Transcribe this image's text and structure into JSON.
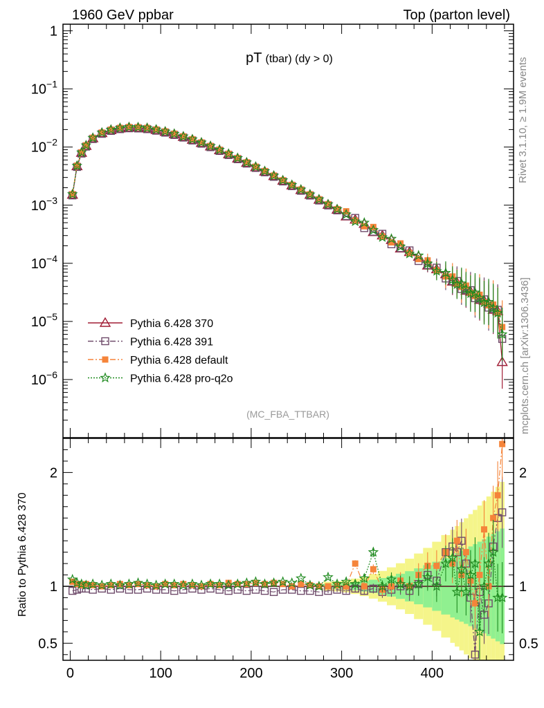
{
  "header": {
    "left": "1960 GeV ppbar",
    "right": "Top (parton level)"
  },
  "side_labels": {
    "rivet": "Rivet 3.1.10, ≥ 1.9M events",
    "mcplots": "mcplots.cern.ch [arXiv:1306.3436]"
  },
  "chart_data": [
    {
      "type": "line",
      "panel": "main",
      "title": "pT",
      "title_sub": "(tbar) (dy > 0)",
      "watermark": "(MC_FBA_TTBAR)",
      "yscale": "log",
      "xlim": [
        -8,
        490
      ],
      "ylim": [
        1e-07,
        1.3
      ],
      "ytick_labels": [
        {
          "value": 1,
          "label": "1"
        },
        {
          "value": 0.1,
          "base": "10",
          "exp": "−1"
        },
        {
          "value": 0.01,
          "base": "10",
          "exp": "−2"
        },
        {
          "value": 0.001,
          "base": "10",
          "exp": "−3"
        },
        {
          "value": 0.0001,
          "base": "10",
          "exp": "−4"
        },
        {
          "value": 1e-05,
          "base": "10",
          "exp": "−5"
        },
        {
          "value": 1e-06,
          "base": "10",
          "exp": "−6"
        }
      ],
      "knots": {
        "x": [
          2.5,
          7.5,
          12.5,
          17.5,
          25,
          35,
          45,
          55,
          65,
          72.5,
          85,
          100,
          120,
          140,
          160,
          180,
          200,
          220,
          240,
          260,
          280,
          300,
          320,
          340,
          360,
          380,
          400,
          420,
          440,
          460,
          470,
          477.5
        ],
        "log10y": [
          -2.82,
          -2.33,
          -2.1,
          -1.98,
          -1.85,
          -1.76,
          -1.71,
          -1.68,
          -1.665,
          -1.665,
          -1.68,
          -1.72,
          -1.8,
          -1.9,
          -2.02,
          -2.16,
          -2.31,
          -2.46,
          -2.62,
          -2.78,
          -2.95,
          -3.12,
          -3.3,
          -3.48,
          -3.67,
          -3.86,
          -4.06,
          -4.26,
          -4.47,
          -4.68,
          -4.8,
          -4.9
        ]
      },
      "series": [
        {
          "name": "Pythia 6.428 370",
          "color": "#a01c34",
          "marker": "triangle",
          "dash": "solid",
          "dy": 0.0,
          "noise": 0.03,
          "last_y": 2e-06
        },
        {
          "name": "Pythia 6.428 391",
          "color": "#6e4a6a",
          "marker": "square-open",
          "dash": "dashdot",
          "dy": -0.012,
          "noise": 0.05,
          "last_y": 5e-06
        },
        {
          "name": "Pythia 6.428 default",
          "color": "#f5843a",
          "marker": "square-filled",
          "dash": "dashdot",
          "dy": 0.01,
          "noise": 0.05,
          "last_y": 8e-06
        },
        {
          "name": "Pythia 6.428 pro-q2o",
          "color": "#1f8a1f",
          "marker": "star",
          "dash": "dotted",
          "dy": 0.008,
          "noise": 0.04,
          "last_y": 6e-06
        }
      ]
    },
    {
      "type": "line",
      "panel": "ratio",
      "ylabel": "Ratio to Pythia 6.428 370",
      "xlim": [
        -8,
        490
      ],
      "ylim": [
        0.35,
        2.3
      ],
      "yticks": [
        0.5,
        1,
        2
      ],
      "ytick_labels": [
        "0.5",
        "1",
        "2"
      ],
      "xticks": [
        0,
        100,
        200,
        300,
        400
      ],
      "xtick_labels": [
        "0",
        "100",
        "200",
        "300",
        "400"
      ],
      "band_colors": {
        "outer": "#f5f58a",
        "inner": "#90f090"
      },
      "ratios": {
        "Pythia 6.428 391": {
          "x": [
            2.5,
            7.5,
            12.5,
            17.5,
            25,
            35,
            45,
            55,
            65,
            75,
            85,
            95,
            105,
            115,
            125,
            135,
            145,
            155,
            165,
            175,
            185,
            195,
            205,
            215,
            225,
            235,
            245,
            255,
            265,
            275,
            285,
            295,
            305,
            315,
            325,
            335,
            345,
            355,
            365,
            375,
            385,
            395,
            405,
            415,
            422.5,
            427.5,
            432.5,
            437.5,
            442.5,
            447.5,
            452.5,
            457.5,
            462.5,
            467.5,
            472.5,
            477.5
          ],
          "y": [
            0.96,
            0.97,
            0.98,
            0.98,
            0.97,
            0.98,
            0.97,
            0.98,
            0.97,
            0.97,
            0.98,
            0.97,
            0.97,
            0.96,
            0.97,
            0.98,
            0.97,
            0.98,
            0.97,
            0.96,
            0.97,
            0.96,
            0.97,
            0.96,
            0.95,
            0.97,
            0.97,
            0.96,
            0.96,
            0.95,
            0.96,
            0.97,
            0.96,
            0.98,
            0.96,
            0.98,
            0.95,
            0.97,
            1.0,
            0.96,
            1.02,
            1.1,
            1.05,
            1.3,
            1.35,
            1.3,
            1.4,
            1.2,
            0.9,
            0.4,
            0.95,
            0.75,
            0.85,
            1.35,
            1.6,
            1.65
          ]
        },
        "Pythia 6.428 default": {
          "x": [
            2.5,
            7.5,
            12.5,
            17.5,
            25,
            35,
            45,
            55,
            65,
            75,
            85,
            95,
            105,
            115,
            125,
            135,
            145,
            155,
            165,
            175,
            185,
            195,
            205,
            215,
            225,
            235,
            245,
            255,
            265,
            275,
            285,
            295,
            305,
            315,
            325,
            335,
            345,
            355,
            365,
            375,
            385,
            395,
            405,
            415,
            422.5,
            427.5,
            432.5,
            437.5,
            442.5,
            447.5,
            452.5,
            457.5,
            462.5,
            467.5,
            472.5,
            477.5
          ],
          "y": [
            1.04,
            1.02,
            1.01,
            1.02,
            1.01,
            1.0,
            1.01,
            1.02,
            1.01,
            1.02,
            1.01,
            1.0,
            1.02,
            1.01,
            1.02,
            1.01,
            1.0,
            1.02,
            1.01,
            1.03,
            1.02,
            1.02,
            1.03,
            1.02,
            1.03,
            1.02,
            1.0,
            1.02,
            1.01,
            1.0,
            1.0,
            1.01,
            1.0,
            1.2,
            1.0,
            1.15,
            0.97,
            1.0,
            1.05,
            1.0,
            1.1,
            1.18,
            1.18,
            1.3,
            1.2,
            1.4,
            1.1,
            1.3,
            1.05,
            0.85,
            1.1,
            1.5,
            1.0,
            1.6,
            1.8,
            2.25
          ]
        },
        "Pythia 6.428 pro-q2o": {
          "x": [
            2.5,
            7.5,
            12.5,
            17.5,
            25,
            35,
            45,
            55,
            65,
            75,
            85,
            95,
            105,
            115,
            125,
            135,
            145,
            155,
            165,
            175,
            185,
            195,
            205,
            215,
            225,
            235,
            245,
            255,
            265,
            275,
            285,
            295,
            305,
            315,
            325,
            335,
            345,
            355,
            365,
            375,
            385,
            395,
            405,
            415,
            422.5,
            427.5,
            432.5,
            437.5,
            442.5,
            447.5,
            452.5,
            457.5,
            462.5,
            467.5,
            472.5,
            477.5
          ],
          "y": [
            1.06,
            1.03,
            1.02,
            1.01,
            1.02,
            1.01,
            1.02,
            1.01,
            1.02,
            1.03,
            1.02,
            1.01,
            1.02,
            1.02,
            1.01,
            1.02,
            1.01,
            1.02,
            1.02,
            1.01,
            1.02,
            1.03,
            1.04,
            1.02,
            1.03,
            1.04,
            1.03,
            1.07,
            1.01,
            1.0,
            1.08,
            1.02,
            1.04,
            1.02,
            1.07,
            1.3,
            1.0,
            1.06,
            1.02,
            1.0,
            1.02,
            1.08,
            1.0,
            1.2,
            1.25,
            0.95,
            1.15,
            0.95,
            1.1,
            1.2,
            0.6,
            1.0,
            1.2,
            1.3,
            0.9,
            0.9
          ]
        }
      }
    }
  ]
}
